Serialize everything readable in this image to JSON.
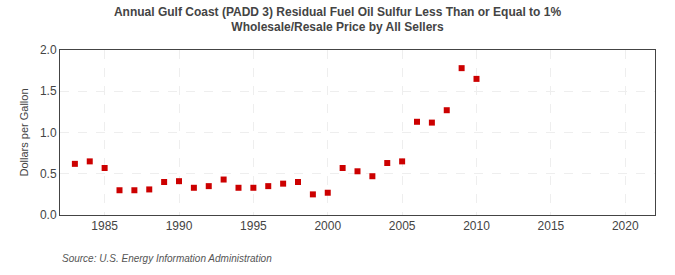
{
  "chart_data": {
    "type": "scatter",
    "title": "Annual Gulf Coast (PADD 3) Residual Fuel Oil Sulfur Less Than or Equal to 1%\nWholesale/Resale Price by All Sellers",
    "ylabel": "Dollars per Gallon",
    "annotations": [
      "Source: U.S. Energy Information Administration"
    ],
    "x": [
      1983,
      1984,
      1985,
      1986,
      1987,
      1988,
      1989,
      1990,
      1991,
      1992,
      1993,
      1994,
      1995,
      1996,
      1997,
      1998,
      1999,
      2000,
      2001,
      2002,
      2003,
      2004,
      2005,
      2006,
      2007,
      2008,
      2009,
      2010
    ],
    "values": [
      0.62,
      0.65,
      0.57,
      0.3,
      0.3,
      0.31,
      0.4,
      0.41,
      0.33,
      0.35,
      0.43,
      0.33,
      0.33,
      0.35,
      0.38,
      0.4,
      0.25,
      0.27,
      0.57,
      0.53,
      0.47,
      0.63,
      0.65,
      1.13,
      1.12,
      1.27,
      1.78,
      1.65
    ],
    "color": "#cc0000",
    "marker": "square",
    "xlim": [
      1982,
      2022
    ],
    "ylim": [
      0.0,
      2.0
    ],
    "xticks": [
      1985,
      1990,
      1995,
      2000,
      2005,
      2010,
      2015,
      2020
    ],
    "yticks": [
      {
        "value": 0.0,
        "label": "0.0"
      },
      0.5,
      {
        "value": 1.0,
        "label": "1.0"
      },
      1.5,
      {
        "value": 2.0,
        "label": "2.0"
      }
    ],
    "grid": true
  }
}
